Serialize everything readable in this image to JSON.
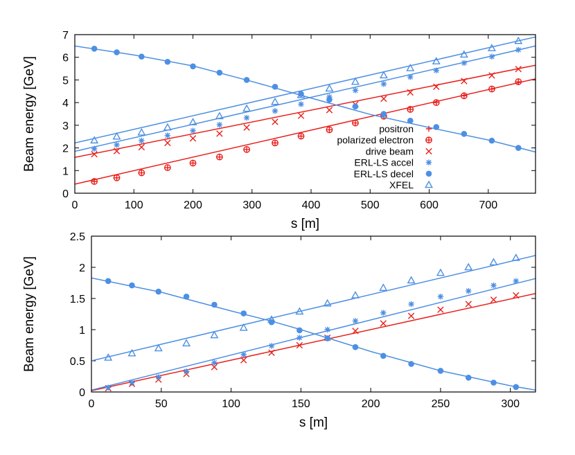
{
  "colors": {
    "red": "#e8201c",
    "blue": "#4d8fe3",
    "axis": "#000000"
  },
  "chart_data": [
    {
      "type": "line",
      "id": "top",
      "xlabel": "s [m]",
      "ylabel": "Beam energy [GeV]",
      "xlim": [
        0,
        780
      ],
      "ylim": [
        0,
        7
      ],
      "xticks": [
        0,
        100,
        200,
        300,
        400,
        500,
        600,
        700
      ],
      "yticks": [
        0,
        1,
        2,
        3,
        4,
        5,
        6,
        7
      ],
      "legend_position": "center-right",
      "legend": [
        {
          "label": "positron",
          "marker": "plus",
          "color": "#e8201c"
        },
        {
          "label": "polarized electron",
          "marker": "circle",
          "color": "#e8201c"
        },
        {
          "label": "drive beam",
          "marker": "x",
          "color": "#e8201c"
        },
        {
          "label": "ERL-LS accel",
          "marker": "star",
          "color": "#4d8fe3"
        },
        {
          "label": "ERL-LS decel",
          "marker": "dot",
          "color": "#4d8fe3"
        },
        {
          "label": "XFEL",
          "marker": "triangle",
          "color": "#4d8fe3"
        }
      ],
      "series": [
        {
          "name": "polarized electron",
          "marker": "circle",
          "color": "#e8201c",
          "line": [
            [
              0,
              0.4
            ],
            [
              780,
              5.05
            ]
          ],
          "points": [
            [
              33,
              0.52
            ],
            [
              71,
              0.68
            ],
            [
              113,
              0.9
            ],
            [
              157,
              1.13
            ],
            [
              200,
              1.33
            ],
            [
              245,
              1.6
            ],
            [
              291,
              1.93
            ],
            [
              339,
              2.22
            ],
            [
              383,
              2.52
            ],
            [
              431,
              2.8
            ],
            [
              475,
              3.1
            ],
            [
              523,
              3.4
            ],
            [
              568,
              3.7
            ],
            [
              612,
              4.0
            ],
            [
              659,
              4.3
            ],
            [
              706,
              4.6
            ],
            [
              751,
              4.92
            ]
          ]
        },
        {
          "name": "drive beam",
          "marker": "x",
          "color": "#e8201c",
          "line": [
            [
              0,
              1.58
            ],
            [
              780,
              5.65
            ]
          ],
          "points": [
            [
              33,
              1.72
            ],
            [
              71,
              1.86
            ],
            [
              113,
              2.03
            ],
            [
              157,
              2.22
            ],
            [
              200,
              2.42
            ],
            [
              245,
              2.63
            ],
            [
              291,
              2.9
            ],
            [
              339,
              3.15
            ],
            [
              383,
              3.42
            ],
            [
              431,
              3.67
            ],
            [
              475,
              3.92
            ],
            [
              523,
              4.17
            ],
            [
              568,
              4.45
            ],
            [
              612,
              4.7
            ],
            [
              659,
              4.95
            ],
            [
              706,
              5.2
            ],
            [
              751,
              5.48
            ]
          ]
        },
        {
          "name": "ERL-LS accel",
          "marker": "star",
          "color": "#4d8fe3",
          "line": [
            [
              0,
              1.85
            ],
            [
              780,
              6.5
            ]
          ],
          "points": [
            [
              33,
              1.96
            ],
            [
              71,
              2.13
            ],
            [
              113,
              2.32
            ],
            [
              157,
              2.55
            ],
            [
              200,
              2.76
            ],
            [
              245,
              3.02
            ],
            [
              291,
              3.33
            ],
            [
              339,
              3.63
            ],
            [
              383,
              3.93
            ],
            [
              431,
              4.25
            ],
            [
              475,
              4.54
            ],
            [
              523,
              4.82
            ],
            [
              568,
              5.13
            ],
            [
              612,
              5.42
            ],
            [
              659,
              5.75
            ],
            [
              706,
              6.03
            ],
            [
              751,
              6.33
            ]
          ]
        },
        {
          "name": "XFEL",
          "marker": "triangle",
          "color": "#4d8fe3",
          "line": [
            [
              0,
              2.22
            ],
            [
              780,
              6.9
            ]
          ],
          "points": [
            [
              33,
              2.33
            ],
            [
              71,
              2.5
            ],
            [
              113,
              2.68
            ],
            [
              157,
              2.9
            ],
            [
              200,
              3.13
            ],
            [
              245,
              3.4
            ],
            [
              291,
              3.73
            ],
            [
              339,
              4.03
            ],
            [
              383,
              4.33
            ],
            [
              431,
              4.62
            ],
            [
              475,
              4.92
            ],
            [
              523,
              5.2
            ],
            [
              568,
              5.52
            ],
            [
              612,
              5.82
            ],
            [
              659,
              6.12
            ],
            [
              706,
              6.4
            ],
            [
              751,
              6.72
            ]
          ]
        },
        {
          "name": "ERL-LS decel",
          "marker": "dot",
          "color": "#4d8fe3",
          "line": [
            [
              0,
              6.5
            ],
            [
              100,
              6.1
            ],
            [
              200,
              5.62
            ],
            [
              300,
              4.93
            ],
            [
              400,
              4.2
            ],
            [
              500,
              3.48
            ],
            [
              600,
              2.9
            ],
            [
              700,
              2.35
            ],
            [
              780,
              1.82
            ]
          ],
          "points": [
            [
              33,
              6.38
            ],
            [
              71,
              6.22
            ],
            [
              113,
              6.03
            ],
            [
              157,
              5.8
            ],
            [
              200,
              5.6
            ],
            [
              245,
              5.32
            ],
            [
              291,
              5.0
            ],
            [
              339,
              4.7
            ],
            [
              383,
              4.38
            ],
            [
              431,
              4.13
            ],
            [
              475,
              3.83
            ],
            [
              523,
              3.5
            ],
            [
              568,
              3.2
            ],
            [
              612,
              2.92
            ],
            [
              659,
              2.62
            ],
            [
              706,
              2.32
            ],
            [
              751,
              2.0
            ]
          ]
        }
      ]
    },
    {
      "type": "line",
      "id": "bottom",
      "xlabel": "s [m]",
      "ylabel": "Beam energy [GeV]",
      "xlim": [
        0,
        318
      ],
      "ylim": [
        0,
        2.5
      ],
      "xticks": [
        0,
        50,
        100,
        150,
        200,
        250,
        300
      ],
      "yticks": [
        0,
        0.5,
        1,
        1.5,
        2,
        2.5
      ],
      "series": [
        {
          "name": "drive beam",
          "marker": "x",
          "color": "#e8201c",
          "line": [
            [
              0,
              0.02
            ],
            [
              318,
              1.58
            ]
          ],
          "points": [
            [
              12,
              0.06
            ],
            [
              29,
              0.13
            ],
            [
              48,
              0.2
            ],
            [
              68,
              0.29
            ],
            [
              88,
              0.4
            ],
            [
              109,
              0.51
            ],
            [
              129,
              0.63
            ],
            [
              149,
              0.75
            ],
            [
              169,
              0.87
            ],
            [
              189,
              0.98
            ],
            [
              209,
              1.1
            ],
            [
              229,
              1.22
            ],
            [
              250,
              1.32
            ],
            [
              270,
              1.41
            ],
            [
              288,
              1.48
            ],
            [
              304,
              1.55
            ]
          ]
        },
        {
          "name": "ERL-LS accel",
          "marker": "star",
          "color": "#4d8fe3",
          "line": [
            [
              0,
              0.03
            ],
            [
              318,
              1.82
            ]
          ],
          "points": [
            [
              12,
              0.07
            ],
            [
              29,
              0.15
            ],
            [
              48,
              0.24
            ],
            [
              68,
              0.33
            ],
            [
              88,
              0.47
            ],
            [
              109,
              0.6
            ],
            [
              129,
              0.74
            ],
            [
              149,
              0.87
            ],
            [
              169,
              1.0
            ],
            [
              189,
              1.14
            ],
            [
              209,
              1.27
            ],
            [
              229,
              1.41
            ],
            [
              250,
              1.53
            ],
            [
              270,
              1.62
            ],
            [
              288,
              1.71
            ],
            [
              304,
              1.78
            ]
          ]
        },
        {
          "name": "XFEL",
          "marker": "triangle",
          "color": "#4d8fe3",
          "line": [
            [
              0,
              0.5
            ],
            [
              318,
              2.19
            ]
          ],
          "points": [
            [
              12,
              0.55
            ],
            [
              29,
              0.62
            ],
            [
              48,
              0.7
            ],
            [
              68,
              0.78
            ],
            [
              88,
              0.91
            ],
            [
              109,
              1.03
            ],
            [
              129,
              1.16
            ],
            [
              149,
              1.29
            ],
            [
              169,
              1.42
            ],
            [
              189,
              1.55
            ],
            [
              209,
              1.67
            ],
            [
              229,
              1.79
            ],
            [
              250,
              1.91
            ],
            [
              270,
              2.0
            ],
            [
              288,
              2.08
            ],
            [
              304,
              2.15
            ]
          ]
        },
        {
          "name": "ERL-LS decel",
          "marker": "dot",
          "color": "#4d8fe3",
          "line": [
            [
              0,
              1.83
            ],
            [
              50,
              1.6
            ],
            [
              100,
              1.3
            ],
            [
              130,
              1.13
            ],
            [
              150,
              1.0
            ],
            [
              170,
              0.86
            ],
            [
              200,
              0.65
            ],
            [
              250,
              0.34
            ],
            [
              300,
              0.1
            ],
            [
              318,
              0.03
            ]
          ],
          "points": [
            [
              12,
              1.78
            ],
            [
              29,
              1.71
            ],
            [
              48,
              1.61
            ],
            [
              68,
              1.53
            ],
            [
              88,
              1.4
            ],
            [
              109,
              1.26
            ],
            [
              129,
              1.12
            ],
            [
              149,
              0.99
            ],
            [
              169,
              0.86
            ],
            [
              189,
              0.72
            ],
            [
              209,
              0.58
            ],
            [
              229,
              0.45
            ],
            [
              250,
              0.34
            ],
            [
              270,
              0.23
            ],
            [
              288,
              0.15
            ],
            [
              304,
              0.08
            ]
          ]
        }
      ]
    }
  ]
}
